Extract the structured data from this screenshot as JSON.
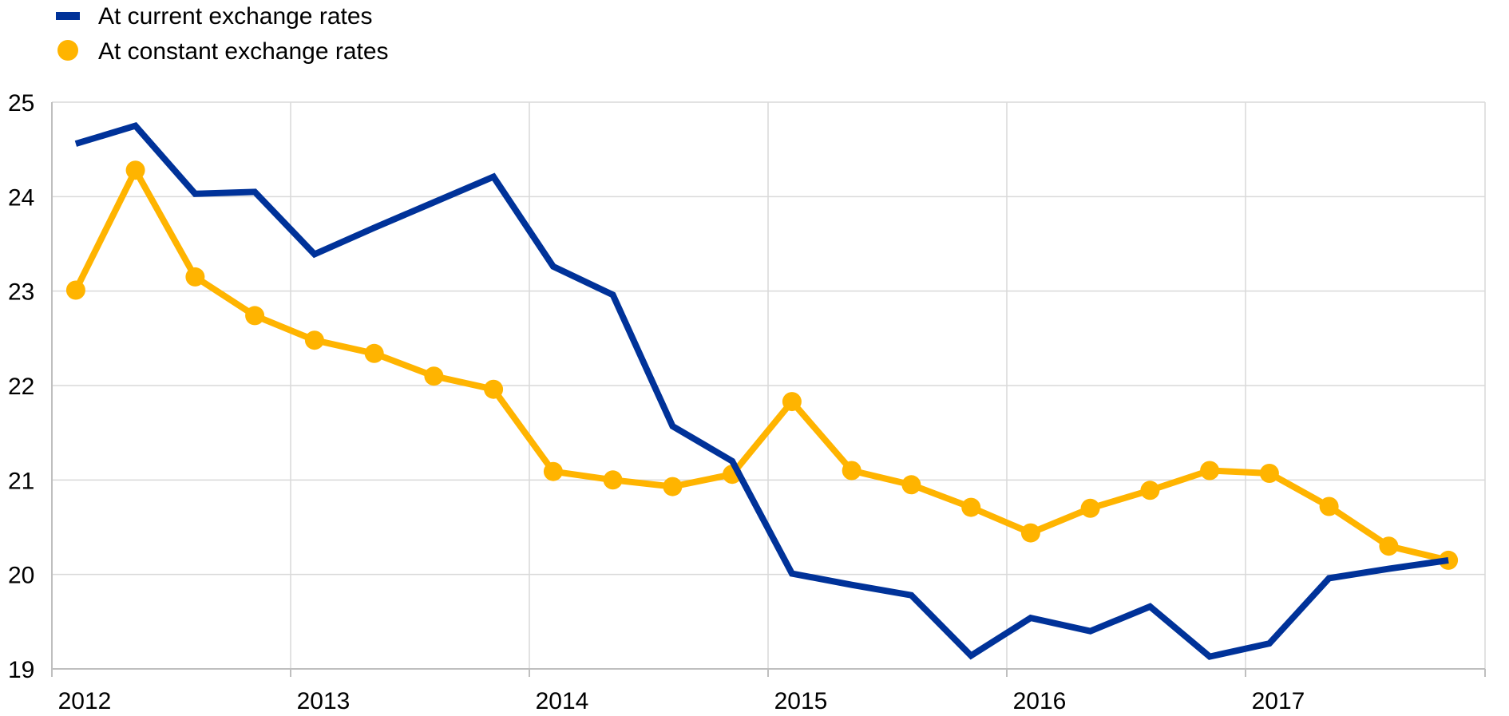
{
  "chart_data": {
    "type": "line",
    "title": "",
    "xlabel": "",
    "ylabel": "",
    "ylim": [
      19,
      25
    ],
    "yticks": [
      "19",
      "20",
      "21",
      "22",
      "23",
      "24",
      "25"
    ],
    "x_tick_labels": [
      "2012",
      "2013",
      "2014",
      "2015",
      "2016",
      "2017"
    ],
    "x_tick_years": [
      2012,
      2013,
      2014,
      2015,
      2016,
      2017
    ],
    "grid": true,
    "legend_position": "top-left",
    "series": [
      {
        "name": "At current exchange rates",
        "style": "line",
        "color": "#003299",
        "x": [
          "2012Q1",
          "2012Q2",
          "2012Q3",
          "2012Q4",
          "2013Q1",
          "2013Q2",
          "2013Q3",
          "2013Q4",
          "2014Q1",
          "2014Q2",
          "2014Q3",
          "2014Q4",
          "2015Q1",
          "2015Q2",
          "2015Q3",
          "2015Q4",
          "2016Q1",
          "2016Q2",
          "2016Q3",
          "2016Q4",
          "2017Q1",
          "2017Q2",
          "2017Q3",
          "2017Q4"
        ],
        "values": [
          24.56,
          24.75,
          24.03,
          24.05,
          23.39,
          23.67,
          23.94,
          24.21,
          23.26,
          22.96,
          21.57,
          21.2,
          20.01,
          19.89,
          19.78,
          19.14,
          19.54,
          19.4,
          19.66,
          19.13,
          19.27,
          19.96,
          20.06,
          20.15
        ]
      },
      {
        "name": "At constant exchange rates",
        "style": "line-markers",
        "color": "#FFB400",
        "x": [
          "2012Q1",
          "2012Q2",
          "2012Q3",
          "2012Q4",
          "2013Q1",
          "2013Q2",
          "2013Q3",
          "2013Q4",
          "2014Q1",
          "2014Q2",
          "2014Q3",
          "2014Q4",
          "2015Q1",
          "2015Q2",
          "2015Q3",
          "2015Q4",
          "2016Q1",
          "2016Q2",
          "2016Q3",
          "2016Q4",
          "2017Q1",
          "2017Q2",
          "2017Q3",
          "2017Q4"
        ],
        "values": [
          23.01,
          24.28,
          23.15,
          22.74,
          22.48,
          22.34,
          22.1,
          21.96,
          21.09,
          21.0,
          20.93,
          21.06,
          21.83,
          21.1,
          20.95,
          20.71,
          20.44,
          20.7,
          20.89,
          21.1,
          21.07,
          20.72,
          20.3,
          20.15
        ]
      }
    ]
  },
  "style": {
    "grid_color": "#D9D9D9",
    "axis_color": "#BFBFBF",
    "text_color": "#000000"
  }
}
